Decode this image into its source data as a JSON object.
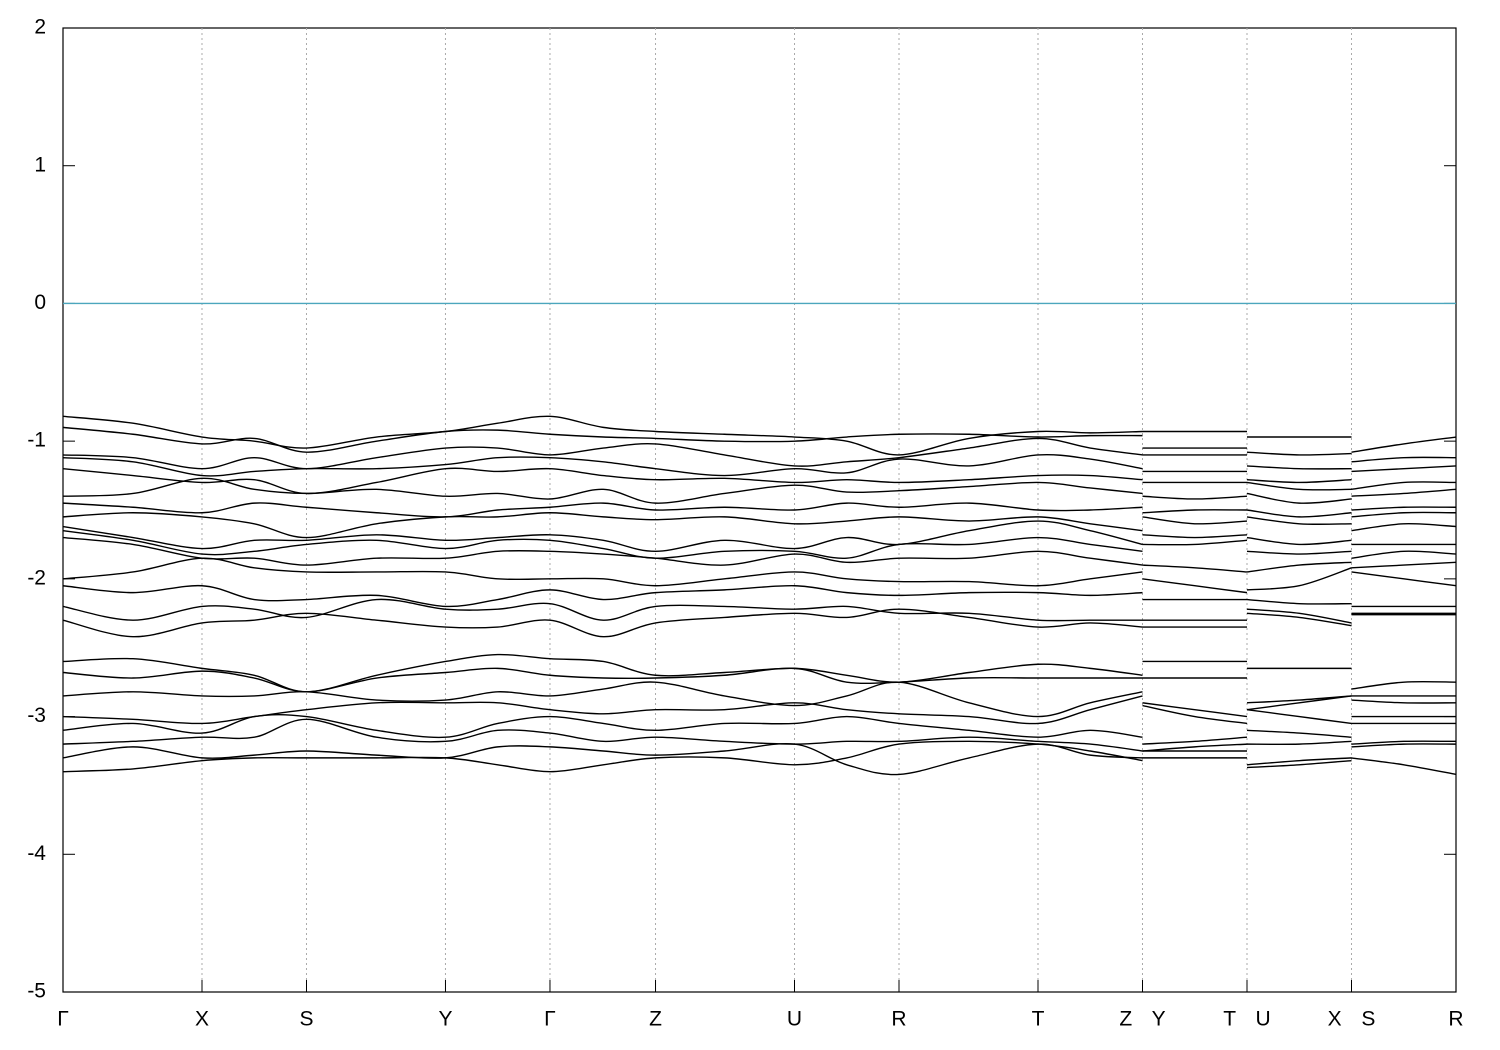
{
  "chart_data": {
    "type": "line",
    "x": [
      0,
      0.67,
      1.33,
      1.83,
      2.33,
      3.0,
      3.66,
      4.16,
      4.66,
      5.17,
      5.67,
      6.33,
      7.0,
      7.5,
      8.0,
      8.67,
      9.33,
      9.83,
      10.33,
      10.33,
      10.33,
      10.83,
      11.33,
      11.33,
      11.33,
      11.83,
      12.33,
      12.33,
      12.33,
      12.83,
      13.33
    ],
    "xlim": [
      0,
      13.33
    ],
    "xticks": [
      {
        "value": 0,
        "label": "Γ"
      },
      {
        "value": 1.33,
        "label": "X"
      },
      {
        "value": 2.33,
        "label": "S"
      },
      {
        "value": 3.66,
        "label": "Y"
      },
      {
        "value": 4.66,
        "label": "Γ"
      },
      {
        "value": 5.67,
        "label": "Z"
      },
      {
        "value": 7.0,
        "label": "U"
      },
      {
        "value": 8.0,
        "label": "R"
      },
      {
        "value": 9.33,
        "label": "T"
      },
      {
        "value": 10.33,
        "label": "Z Y"
      },
      {
        "value": 11.33,
        "label": "T U"
      },
      {
        "value": 12.33,
        "label": "X S"
      },
      {
        "value": 13.33,
        "label": "R"
      }
    ],
    "ylim": [
      -5,
      2
    ],
    "yticks": [
      -5,
      -4,
      -3,
      -2,
      -1,
      0,
      1,
      2
    ],
    "grid": true,
    "hlines": [
      {
        "y": 0,
        "color": "#4ba6bd"
      }
    ],
    "series": [
      {
        "color": "#000000",
        "values": [
          -0.82,
          -0.87,
          -0.97,
          -1.0,
          -1.05,
          -0.97,
          -0.93,
          -0.87,
          -0.82,
          -0.9,
          -0.93,
          -0.95,
          -0.97,
          -1.0,
          -1.1,
          -0.98,
          -0.93,
          -0.94,
          -0.93,
          null,
          -0.93,
          -0.93,
          -0.93,
          null,
          -0.97,
          -0.97,
          -0.97,
          null,
          -1.08,
          -1.02,
          -0.97
        ]
      },
      {
        "color": "#000000",
        "values": [
          -0.9,
          -0.95,
          -1.02,
          -0.98,
          -1.08,
          -1.0,
          -0.93,
          -0.92,
          -0.95,
          -0.97,
          -0.98,
          -1.0,
          -1.0,
          -0.97,
          -0.95,
          -0.95,
          -0.97,
          -0.96,
          -0.96,
          null,
          -1.05,
          -1.05,
          -1.05,
          null,
          -1.08,
          -1.1,
          -1.09,
          null,
          -1.15,
          -1.12,
          -1.12
        ]
      },
      {
        "color": "#000000",
        "values": [
          -1.1,
          -1.12,
          -1.2,
          -1.12,
          -1.2,
          -1.12,
          -1.05,
          -1.05,
          -1.1,
          -1.05,
          -1.02,
          -1.1,
          -1.18,
          -1.15,
          -1.12,
          -1.05,
          -0.98,
          -1.05,
          -1.1,
          null,
          -1.1,
          -1.1,
          -1.1,
          null,
          -1.18,
          -1.2,
          -1.2,
          null,
          -1.22,
          -1.2,
          -1.18
        ]
      },
      {
        "color": "#000000",
        "values": [
          -1.12,
          -1.15,
          -1.25,
          -1.22,
          -1.2,
          -1.2,
          -1.17,
          -1.12,
          -1.12,
          -1.15,
          -1.2,
          -1.25,
          -1.2,
          -1.23,
          -1.13,
          -1.18,
          -1.1,
          -1.13,
          -1.2,
          null,
          -1.22,
          -1.22,
          -1.22,
          null,
          -1.28,
          -1.3,
          -1.28,
          null,
          -1.35,
          -1.3,
          -1.3
        ]
      },
      {
        "color": "#000000",
        "values": [
          -1.2,
          -1.25,
          -1.3,
          -1.28,
          -1.38,
          -1.3,
          -1.2,
          -1.22,
          -1.2,
          -1.25,
          -1.28,
          -1.27,
          -1.3,
          -1.28,
          -1.3,
          -1.28,
          -1.25,
          -1.25,
          -1.28,
          null,
          -1.3,
          -1.3,
          -1.3,
          null,
          -1.3,
          -1.35,
          -1.35,
          null,
          -1.4,
          -1.38,
          -1.35
        ]
      },
      {
        "color": "#000000",
        "values": [
          -1.4,
          -1.38,
          -1.27,
          -1.35,
          -1.38,
          -1.35,
          -1.4,
          -1.38,
          -1.42,
          -1.35,
          -1.45,
          -1.38,
          -1.32,
          -1.37,
          -1.36,
          -1.33,
          -1.3,
          -1.34,
          -1.38,
          null,
          -1.4,
          -1.42,
          -1.4,
          null,
          -1.38,
          -1.45,
          -1.42,
          null,
          -1.5,
          -1.48,
          -1.48
        ]
      },
      {
        "color": "#000000",
        "values": [
          -1.45,
          -1.48,
          -1.52,
          -1.45,
          -1.48,
          -1.52,
          -1.55,
          -1.5,
          -1.48,
          -1.45,
          -1.5,
          -1.48,
          -1.5,
          -1.45,
          -1.48,
          -1.45,
          -1.5,
          -1.5,
          -1.48,
          null,
          -1.52,
          -1.5,
          -1.5,
          null,
          -1.5,
          -1.55,
          -1.52,
          null,
          -1.55,
          -1.52,
          -1.52
        ]
      },
      {
        "color": "#000000",
        "values": [
          -1.55,
          -1.52,
          -1.55,
          -1.6,
          -1.7,
          -1.6,
          -1.55,
          -1.55,
          -1.52,
          -1.55,
          -1.57,
          -1.55,
          -1.6,
          -1.58,
          -1.55,
          -1.58,
          -1.55,
          -1.6,
          -1.65,
          null,
          -1.55,
          -1.6,
          -1.58,
          null,
          -1.55,
          -1.6,
          -1.6,
          null,
          -1.65,
          -1.6,
          -1.62
        ]
      },
      {
        "color": "#000000",
        "values": [
          -1.62,
          -1.7,
          -1.78,
          -1.72,
          -1.72,
          -1.68,
          -1.72,
          -1.7,
          -1.68,
          -1.72,
          -1.8,
          -1.72,
          -1.78,
          -1.7,
          -1.75,
          -1.65,
          -1.58,
          -1.65,
          -1.75,
          null,
          -1.68,
          -1.7,
          -1.68,
          null,
          -1.7,
          -1.75,
          -1.72,
          null,
          -1.75,
          -1.75,
          -1.75
        ]
      },
      {
        "color": "#000000",
        "values": [
          -1.65,
          -1.72,
          -1.82,
          -1.8,
          -1.75,
          -1.72,
          -1.78,
          -1.72,
          -1.72,
          -1.78,
          -1.85,
          -1.8,
          -1.8,
          -1.85,
          -1.75,
          -1.75,
          -1.7,
          -1.75,
          -1.8,
          null,
          -1.75,
          -1.75,
          -1.72,
          null,
          -1.8,
          -1.82,
          -1.8,
          null,
          -1.85,
          -1.8,
          -1.82
        ]
      },
      {
        "color": "#000000",
        "values": [
          -1.7,
          -1.75,
          -1.85,
          -1.85,
          -1.9,
          -1.85,
          -1.85,
          -1.8,
          -1.8,
          -1.82,
          -1.85,
          -1.9,
          -1.82,
          -1.88,
          -1.85,
          -1.85,
          -1.8,
          -1.85,
          -1.9,
          null,
          -1.9,
          -1.92,
          -1.95,
          null,
          -1.95,
          -1.9,
          -1.88,
          null,
          -1.92,
          -1.9,
          -1.88
        ]
      },
      {
        "color": "#000000",
        "values": [
          -2.0,
          -1.95,
          -1.85,
          -1.92,
          -1.95,
          -1.95,
          -1.95,
          -2.0,
          -2.0,
          -2.0,
          -2.05,
          -2.0,
          -1.95,
          -2.0,
          -2.02,
          -2.02,
          -2.05,
          -2.0,
          -1.95,
          null,
          -2.0,
          -2.05,
          -2.1,
          null,
          -2.08,
          -2.05,
          -1.92,
          null,
          -1.95,
          -2.0,
          -2.05
        ]
      },
      {
        "color": "#000000",
        "values": [
          -2.05,
          -2.1,
          -2.05,
          -2.15,
          -2.15,
          -2.12,
          -2.2,
          -2.15,
          -2.08,
          -2.15,
          -2.1,
          -2.08,
          -2.05,
          -2.1,
          -2.12,
          -2.1,
          -2.1,
          -2.12,
          -2.1,
          null,
          -2.15,
          -2.15,
          -2.15,
          null,
          -2.15,
          -2.18,
          -2.18,
          null,
          -2.2,
          -2.2,
          -2.2
        ]
      },
      {
        "color": "#000000",
        "values": [
          -2.2,
          -2.3,
          -2.2,
          -2.22,
          -2.28,
          -2.15,
          -2.22,
          -2.22,
          -2.18,
          -2.3,
          -2.2,
          -2.2,
          -2.22,
          -2.2,
          -2.25,
          -2.25,
          -2.3,
          -2.3,
          -2.3,
          null,
          -2.3,
          -2.3,
          -2.3,
          null,
          -2.22,
          -2.25,
          -2.32,
          null,
          -2.25,
          -2.25,
          -2.25
        ]
      },
      {
        "color": "#000000",
        "values": [
          -2.3,
          -2.42,
          -2.32,
          -2.3,
          -2.25,
          -2.3,
          -2.35,
          -2.35,
          -2.3,
          -2.42,
          -2.32,
          -2.28,
          -2.25,
          -2.28,
          -2.22,
          -2.28,
          -2.35,
          -2.32,
          -2.35,
          null,
          -2.35,
          -2.35,
          -2.35,
          null,
          -2.25,
          -2.28,
          -2.34,
          null,
          -2.26,
          -2.26,
          -2.26
        ]
      },
      {
        "color": "#000000",
        "values": [
          -2.6,
          -2.58,
          -2.65,
          -2.7,
          -2.82,
          -2.7,
          -2.6,
          -2.55,
          -2.58,
          -2.6,
          -2.7,
          -2.68,
          -2.65,
          -2.7,
          -2.75,
          -2.68,
          -2.62,
          -2.65,
          -2.7,
          null,
          -2.6,
          -2.6,
          -2.6,
          null,
          -2.65,
          -2.65,
          -2.65,
          null,
          -2.8,
          -2.75,
          -2.75
        ]
      },
      {
        "color": "#000000",
        "values": [
          -2.68,
          -2.72,
          -2.67,
          -2.72,
          -2.82,
          -2.72,
          -2.68,
          -2.65,
          -2.7,
          -2.72,
          -2.72,
          -2.7,
          -2.65,
          -2.75,
          -2.75,
          -2.72,
          -2.72,
          -2.72,
          -2.72,
          null,
          -2.72,
          -2.72,
          -2.72,
          null,
          -2.9,
          -2.88,
          -2.85,
          null,
          -2.85,
          -2.85,
          -2.85
        ]
      },
      {
        "color": "#000000",
        "values": [
          -2.85,
          -2.82,
          -2.85,
          -2.85,
          -2.82,
          -2.88,
          -2.88,
          -2.82,
          -2.85,
          -2.8,
          -2.75,
          -2.85,
          -2.92,
          -2.85,
          -2.75,
          -2.9,
          -3.0,
          -2.9,
          -2.82,
          null,
          -2.9,
          -2.95,
          -3.0,
          null,
          -2.95,
          -2.9,
          -2.85,
          null,
          -2.88,
          -2.9,
          -2.9
        ]
      },
      {
        "color": "#000000",
        "values": [
          -3.0,
          -3.02,
          -3.05,
          -3.0,
          -2.95,
          -2.9,
          -2.9,
          -2.9,
          -2.95,
          -2.98,
          -2.95,
          -2.95,
          -2.9,
          -2.95,
          -2.98,
          -3.0,
          -3.05,
          -2.95,
          -2.85,
          null,
          -2.92,
          -3.0,
          -3.05,
          null,
          -2.95,
          -3.0,
          -3.05,
          null,
          -3.0,
          -3.0,
          -3.0
        ]
      },
      {
        "color": "#000000",
        "values": [
          -3.1,
          -3.05,
          -3.12,
          -3.0,
          -3.0,
          -3.1,
          -3.15,
          -3.05,
          -3.0,
          -3.05,
          -3.1,
          -3.05,
          -3.05,
          -3.0,
          -3.05,
          -3.1,
          -3.15,
          -3.1,
          -3.15,
          null,
          -3.2,
          -3.18,
          -3.15,
          null,
          -3.1,
          -3.12,
          -3.15,
          null,
          -3.05,
          -3.05,
          -3.05
        ]
      },
      {
        "color": "#000000",
        "values": [
          -3.2,
          -3.18,
          -3.15,
          -3.15,
          -3.02,
          -3.15,
          -3.18,
          -3.1,
          -3.12,
          -3.18,
          -3.15,
          -3.18,
          -3.2,
          -3.18,
          -3.18,
          -3.15,
          -3.18,
          -3.2,
          -3.25,
          null,
          -3.25,
          -3.22,
          -3.2,
          null,
          -3.2,
          -3.2,
          -3.18,
          null,
          -3.2,
          -3.18,
          -3.18
        ]
      },
      {
        "color": "#000000",
        "values": [
          -3.3,
          -3.22,
          -3.3,
          -3.28,
          -3.25,
          -3.28,
          -3.3,
          -3.22,
          -3.22,
          -3.25,
          -3.28,
          -3.25,
          -3.2,
          -3.35,
          -3.42,
          -3.3,
          -3.2,
          -3.28,
          -3.3,
          null,
          -3.3,
          -3.3,
          -3.3,
          null,
          -3.35,
          -3.32,
          -3.3,
          null,
          -3.3,
          -3.35,
          -3.42
        ]
      },
      {
        "color": "#000000",
        "values": [
          -3.4,
          -3.38,
          -3.32,
          -3.3,
          -3.3,
          -3.3,
          -3.3,
          -3.35,
          -3.4,
          -3.35,
          -3.3,
          -3.3,
          -3.35,
          -3.3,
          -3.2,
          -3.18,
          -3.2,
          -3.25,
          -3.32,
          null,
          -3.25,
          -3.25,
          -3.25,
          null,
          -3.37,
          -3.35,
          -3.32,
          null,
          -3.22,
          -3.2,
          -3.2
        ]
      }
    ]
  }
}
